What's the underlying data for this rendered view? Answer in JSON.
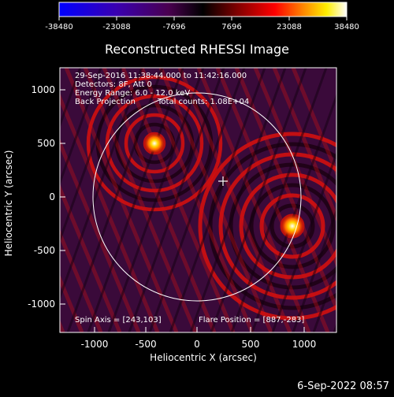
{
  "colorbar": {
    "ticks": [
      "-38480",
      "-23088",
      "-7696",
      "7696",
      "23088",
      "38480"
    ],
    "colors": [
      "#0000ff",
      "#3a00b0",
      "#5a0060",
      "#000000",
      "#800000",
      "#ff0000",
      "#ff8800",
      "#ffee00",
      "#ffffff"
    ]
  },
  "title": "Reconstructed RHESSI Image",
  "info": {
    "time_range": "29-Sep-2016 11:38:44.000 to 11:42:16.000",
    "detectors": "Detectors: 8F, Att 0",
    "energy": "Energy Range: 6.0 - 12.0 keV",
    "method": "Back Projection",
    "counts": "Total counts: 1.08E+04"
  },
  "footer": {
    "spin_axis": "Spin Axis = [243,103]",
    "flare_position": "Flare Position = [887,-283]"
  },
  "axes": {
    "xlabel": "Heliocentric X (arcsec)",
    "ylabel": "Heliocentric Y (arcsec)",
    "xticks": [
      "-1000",
      "-500",
      "0",
      "500",
      "1000"
    ],
    "yticks": [
      "1000",
      "500",
      "0",
      "-500",
      "-1000"
    ]
  },
  "timestamp": "6-Sep-2022 08:57",
  "image_colors": {
    "source_core": "#ffffff",
    "source_mid": "#ffd700",
    "ring": "#d21010",
    "dark": "#3a0a3a"
  }
}
